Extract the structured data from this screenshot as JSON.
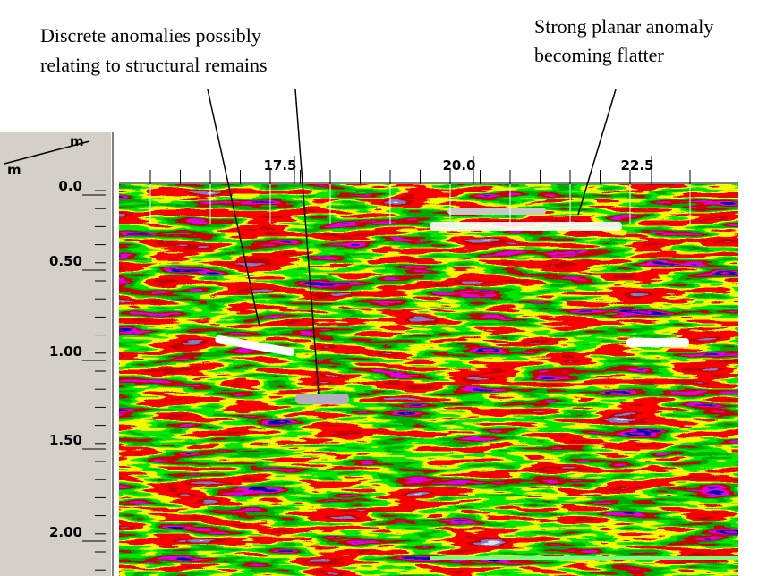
{
  "annotations": [
    {
      "lines": [
        "Discrete anomalies possibly",
        "relating to structural remains"
      ]
    },
    {
      "lines": [
        "Strong planar anomaly",
        "becoming flatter"
      ]
    }
  ],
  "axis": {
    "x_unit": "m",
    "y_unit": "m",
    "x_ticks": [
      "17.5",
      "20.0",
      "22.5"
    ],
    "y_ticks": [
      "0.0",
      "0.50",
      "1.00",
      "1.50",
      "2.00"
    ]
  }
}
